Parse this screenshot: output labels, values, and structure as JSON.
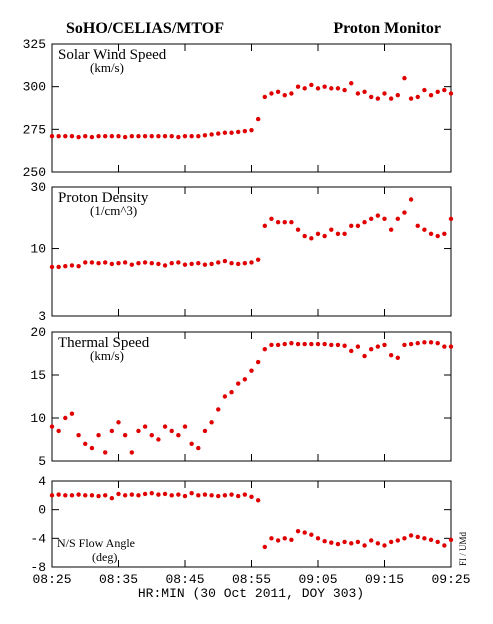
{
  "header": {
    "left": "SoHO/CELIAS/MTOF",
    "right": "Proton Monitor"
  },
  "xlabel": "HR:MIN (30 Oct 2011, DOY 303)",
  "credit": "FI / UMd",
  "chart_data": [
    {
      "type": "scatter",
      "title": "Solar Wind Speed",
      "subtitle": "(km/s)",
      "color": "#e00000",
      "xlim": [
        "08:25",
        "09:25"
      ],
      "xticks": [
        "08:25",
        "08:35",
        "08:45",
        "08:55",
        "09:05",
        "09:15",
        "09:25"
      ],
      "ylim": [
        250,
        325
      ],
      "yticks": [
        250,
        275,
        300,
        325
      ],
      "x": [
        "08:25",
        "08:26",
        "08:27",
        "08:28",
        "08:29",
        "08:30",
        "08:31",
        "08:32",
        "08:33",
        "08:34",
        "08:35",
        "08:36",
        "08:37",
        "08:38",
        "08:39",
        "08:40",
        "08:41",
        "08:42",
        "08:43",
        "08:44",
        "08:45",
        "08:46",
        "08:47",
        "08:48",
        "08:49",
        "08:50",
        "08:51",
        "08:52",
        "08:53",
        "08:54",
        "08:55",
        "08:56",
        "08:57",
        "08:58",
        "08:59",
        "09:00",
        "09:01",
        "09:02",
        "09:03",
        "09:04",
        "09:05",
        "09:06",
        "09:07",
        "09:08",
        "09:09",
        "09:10",
        "09:11",
        "09:12",
        "09:13",
        "09:14",
        "09:15",
        "09:16",
        "09:17",
        "09:18",
        "09:19",
        "09:20",
        "09:21",
        "09:22",
        "09:23",
        "09:24",
        "09:25"
      ],
      "values": [
        271,
        271,
        271,
        271,
        270.5,
        271,
        270.5,
        271,
        271,
        271,
        271,
        270.5,
        271,
        271,
        271,
        271,
        271,
        271,
        271,
        270.5,
        271,
        271,
        271,
        271.5,
        272,
        272.5,
        273,
        273,
        273.5,
        274,
        274.5,
        281,
        294,
        296,
        297,
        295,
        296,
        300,
        299,
        301,
        299,
        300,
        299,
        299,
        298,
        302,
        296,
        297,
        294,
        293,
        296,
        293,
        295,
        305,
        293,
        294,
        298,
        295,
        297,
        298,
        296
      ]
    },
    {
      "type": "scatter",
      "title": "Proton Density",
      "subtitle": "(1/cm^3)",
      "color": "#e00000",
      "log": true,
      "xlim": [
        "08:25",
        "09:25"
      ],
      "xticks": [
        "08:25",
        "08:35",
        "08:45",
        "08:55",
        "09:05",
        "09:15",
        "09:25"
      ],
      "ylim": [
        3,
        30
      ],
      "yticks": [
        3,
        10,
        30
      ],
      "x": [
        "08:25",
        "08:26",
        "08:27",
        "08:28",
        "08:29",
        "08:30",
        "08:31",
        "08:32",
        "08:33",
        "08:34",
        "08:35",
        "08:36",
        "08:37",
        "08:38",
        "08:39",
        "08:40",
        "08:41",
        "08:42",
        "08:43",
        "08:44",
        "08:45",
        "08:46",
        "08:47",
        "08:48",
        "08:49",
        "08:50",
        "08:51",
        "08:52",
        "08:53",
        "08:54",
        "08:55",
        "08:56",
        "08:57",
        "08:58",
        "08:59",
        "09:00",
        "09:01",
        "09:02",
        "09:03",
        "09:04",
        "09:05",
        "09:06",
        "09:07",
        "09:08",
        "09:09",
        "09:10",
        "09:11",
        "09:12",
        "09:13",
        "09:14",
        "09:15",
        "09:16",
        "09:17",
        "09:18",
        "09:19",
        "09:20",
        "09:21",
        "09:22",
        "09:23",
        "09:24",
        "09:25"
      ],
      "values": [
        7.2,
        7.2,
        7.3,
        7.4,
        7.3,
        7.8,
        7.8,
        7.7,
        7.8,
        7.6,
        7.7,
        7.8,
        7.5,
        7.7,
        7.8,
        7.7,
        7.6,
        7.4,
        7.7,
        7.8,
        7.5,
        7.6,
        7.7,
        7.5,
        7.6,
        7.8,
        8.0,
        7.7,
        7.6,
        7.7,
        7.8,
        8.2,
        15,
        17,
        16,
        16,
        16,
        14,
        12.5,
        12,
        13,
        12.5,
        14,
        13,
        13,
        15,
        15,
        16,
        17,
        18,
        17,
        14,
        17,
        19,
        24,
        15,
        14,
        13,
        12.5,
        13,
        17
      ]
    },
    {
      "type": "scatter",
      "title": "Thermal Speed",
      "subtitle": "(km/s)",
      "color": "#e00000",
      "xlim": [
        "08:25",
        "09:25"
      ],
      "xticks": [
        "08:25",
        "08:35",
        "08:45",
        "08:55",
        "09:05",
        "09:15",
        "09:25"
      ],
      "ylim": [
        5,
        20
      ],
      "yticks": [
        5,
        10,
        15,
        20
      ],
      "x": [
        "08:25",
        "08:26",
        "08:27",
        "08:28",
        "08:29",
        "08:30",
        "08:31",
        "08:32",
        "08:33",
        "08:34",
        "08:35",
        "08:36",
        "08:37",
        "08:38",
        "08:39",
        "08:40",
        "08:41",
        "08:42",
        "08:43",
        "08:44",
        "08:45",
        "08:46",
        "08:47",
        "08:48",
        "08:49",
        "08:50",
        "08:51",
        "08:52",
        "08:53",
        "08:54",
        "08:55",
        "08:56",
        "08:57",
        "08:58",
        "08:59",
        "09:00",
        "09:01",
        "09:02",
        "09:03",
        "09:04",
        "09:05",
        "09:06",
        "09:07",
        "09:08",
        "09:09",
        "09:10",
        "09:11",
        "09:12",
        "09:13",
        "09:14",
        "09:15",
        "09:16",
        "09:17",
        "09:18",
        "09:19",
        "09:20",
        "09:21",
        "09:22",
        "09:23",
        "09:24",
        "09:25"
      ],
      "values": [
        9,
        8.5,
        10,
        10.5,
        8,
        7,
        6.5,
        8,
        6,
        8.5,
        9.5,
        8,
        6,
        8.5,
        9,
        8,
        7.5,
        9,
        8.5,
        8,
        9,
        7,
        6.5,
        8.5,
        9.5,
        11,
        12.5,
        13,
        14,
        14.5,
        15.5,
        16.5,
        18,
        18.5,
        18.5,
        18.6,
        18.7,
        18.6,
        18.6,
        18.6,
        18.6,
        18.6,
        18.5,
        18.5,
        18.4,
        17.8,
        18.3,
        17.2,
        18,
        18.3,
        18.5,
        17.3,
        17,
        18.5,
        18.6,
        18.7,
        18.8,
        18.8,
        18.7,
        18.3,
        18.3
      ]
    },
    {
      "type": "scatter",
      "title": "N/S Flow Angle",
      "subtitle": "(deg)",
      "color": "#e00000",
      "xlim": [
        "08:25",
        "09:25"
      ],
      "xticks": [
        "08:25",
        "08:35",
        "08:45",
        "08:55",
        "09:05",
        "09:15",
        "09:25"
      ],
      "ylim": [
        -8,
        4
      ],
      "yticks": [
        -8,
        -4,
        0,
        4
      ],
      "x": [
        "08:25",
        "08:26",
        "08:27",
        "08:28",
        "08:29",
        "08:30",
        "08:31",
        "08:32",
        "08:33",
        "08:34",
        "08:35",
        "08:36",
        "08:37",
        "08:38",
        "08:39",
        "08:40",
        "08:41",
        "08:42",
        "08:43",
        "08:44",
        "08:45",
        "08:46",
        "08:47",
        "08:48",
        "08:49",
        "08:50",
        "08:51",
        "08:52",
        "08:53",
        "08:54",
        "08:55",
        "08:56",
        "08:57",
        "08:58",
        "08:59",
        "09:00",
        "09:01",
        "09:02",
        "09:03",
        "09:04",
        "09:05",
        "09:06",
        "09:07",
        "09:08",
        "09:09",
        "09:10",
        "09:11",
        "09:12",
        "09:13",
        "09:14",
        "09:15",
        "09:16",
        "09:17",
        "09:18",
        "09:19",
        "09:20",
        "09:21",
        "09:22",
        "09:23",
        "09:24",
        "09:25"
      ],
      "values": [
        2,
        2.1,
        2,
        2,
        2.1,
        2,
        2,
        1.9,
        2,
        1.6,
        2.2,
        2,
        2.1,
        2,
        2.2,
        2.3,
        2.1,
        2.2,
        2,
        2.1,
        1.9,
        2.3,
        2,
        2.1,
        2,
        1.9,
        2,
        2.1,
        1.9,
        2.1,
        1.8,
        1.3,
        -5.2,
        -4,
        -4.3,
        -4,
        -4.2,
        -3,
        -3.2,
        -3.5,
        -4,
        -4.4,
        -4.6,
        -4.8,
        -4.5,
        -4.7,
        -4.5,
        -5,
        -4.3,
        -4.7,
        -5,
        -4.5,
        -4.3,
        -4,
        -3.6,
        -3.8,
        -4,
        -4.2,
        -4.5,
        -5,
        -4.2
      ]
    }
  ]
}
